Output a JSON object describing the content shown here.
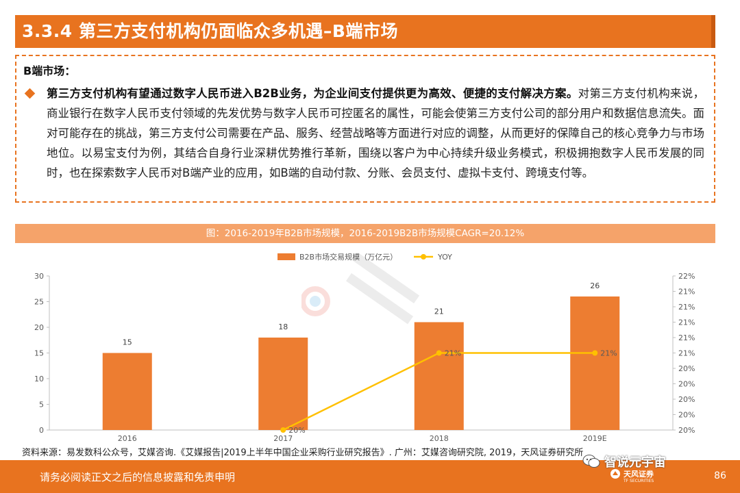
{
  "title": "3.3.4 第三方支付机构仍面临众多机遇–B端市场",
  "textbox": {
    "heading": "B端市场：",
    "bold_lead": "第三方支付机构有望通过数字人民币进入B2B业务，为企业间支付提供更为高效、便捷的支付解决方案。",
    "body": "对第三方支付机构来说，商业银行在数字人民币支付领域的先发优势与数字人民币可控匿名的属性，可能会使第三方支付公司的部分用户和数据信息流失。面对可能存在的挑战，第三方支付公司需要在产品、服务、经营战略等方面进行对应的调整，从而更好的保障自己的核心竞争力与市场地位。以易宝支付为例，其结合自身行业深耕优势推行革新，围绕以客户为中心持续升级业务模式，积极拥抱数字人民币发展的同时，也在探索数字人民币对B端产业的应用，如B端的自动付款、分账、会员支付、虚拟卡支付、跨境支付等。"
  },
  "chart_title": "图：2016-2019年B2B市场规模，2016-2019B2B市场规模CAGR=20.12%",
  "chart_data": {
    "type": "bar",
    "categories": [
      "2016",
      "2017",
      "2018",
      "2019E"
    ],
    "series": [
      {
        "name": "B2B市场交易规模（万亿元）",
        "type": "bar",
        "values": [
          15,
          18,
          21,
          26
        ],
        "labels": [
          "15",
          "18",
          "21",
          "26"
        ],
        "color": "#ed7d31"
      },
      {
        "name": "YOY",
        "type": "line",
        "values": [
          null,
          20,
          21,
          21
        ],
        "labels": [
          "",
          "20%",
          "21%",
          "21%"
        ],
        "color": "#ffc000"
      }
    ],
    "y_left": {
      "ylim": [
        0,
        30
      ],
      "ticks": [
        "0",
        "5",
        "10",
        "15",
        "20",
        "25",
        "30"
      ]
    },
    "y_right": {
      "ticks": [
        "20%",
        "20%",
        "20%",
        "20%",
        "20%",
        "21%",
        "21%",
        "21%",
        "21%",
        "21%",
        "22%"
      ]
    },
    "legend_position": "top-center",
    "grid": false
  },
  "source": "资料来源：易发数科公众号，艾媒咨询.《艾媒报告|2019上半年中国企业采购行业研究报告》. 广州：艾媒咨询研究院, 2019，天风证券研究所",
  "footer": {
    "disclaimer": "请务必阅读正文之后的信息披露和免责申明",
    "page": "86",
    "brand": "天风证券",
    "brand_sub": "TF SECURITIES"
  },
  "wechat_label": "智说元宇宙",
  "colors": {
    "accent": "#e8731f",
    "bar": "#ed7d31",
    "line": "#ffc000"
  }
}
